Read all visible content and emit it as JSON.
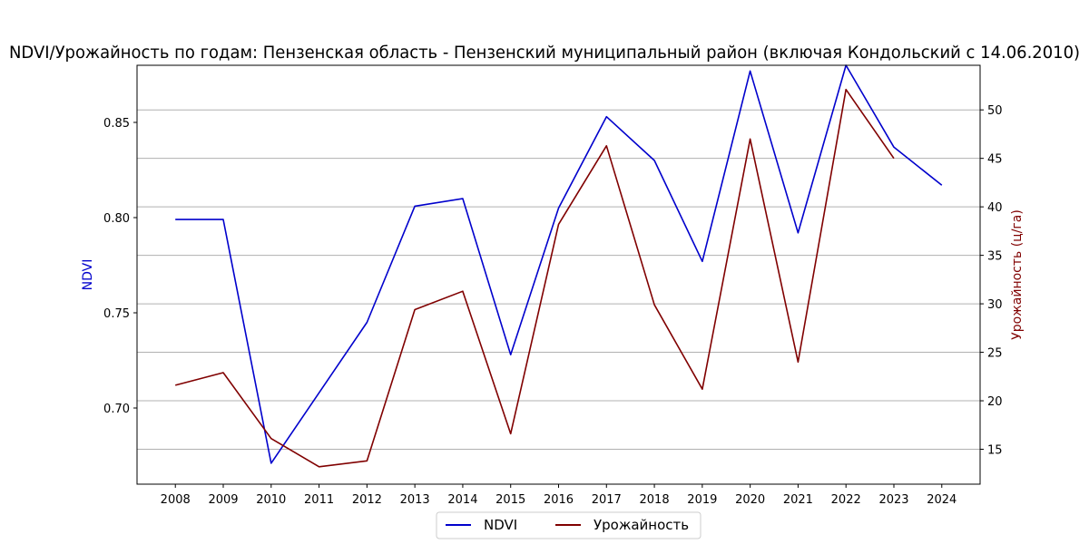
{
  "chart_data": {
    "type": "line",
    "title": "NDVI/Урожайность по годам: Пензенская область - Пензенский муниципальный район (включая Кондольский с 14.06.2010)",
    "x": [
      2008,
      2009,
      2010,
      2011,
      2012,
      2013,
      2014,
      2015,
      2016,
      2017,
      2018,
      2019,
      2020,
      2021,
      2022,
      2023,
      2024
    ],
    "x_tick_labels": [
      "2008",
      "2009",
      "2010",
      "2011",
      "2012",
      "2013",
      "2014",
      "2015",
      "2016",
      "2017",
      "2018",
      "2019",
      "2020",
      "2021",
      "2022",
      "2023",
      "2024"
    ],
    "left_axis": {
      "label": "NDVI",
      "color": "#0000cc",
      "ylim": [
        0.66,
        0.88
      ],
      "ticks": [
        0.7,
        0.75,
        0.8,
        0.85
      ],
      "tick_labels": [
        "0.70",
        "0.75",
        "0.80",
        "0.85"
      ]
    },
    "right_axis": {
      "label": "Урожайность (ц/га)",
      "color": "#800000",
      "ylim": [
        11.4,
        54.6
      ],
      "ticks": [
        15,
        20,
        25,
        30,
        35,
        40,
        45,
        50
      ],
      "tick_labels": [
        "15",
        "20",
        "25",
        "30",
        "35",
        "40",
        "45",
        "50"
      ]
    },
    "grid": true,
    "grid_axis": "right-y",
    "legend_placement": "bottom-center",
    "series": [
      {
        "name": "NDVI",
        "axis": "left",
        "color": "#0000cc",
        "values": [
          0.799,
          0.799,
          0.671,
          0.708,
          0.745,
          0.806,
          0.81,
          0.728,
          0.805,
          0.853,
          0.83,
          0.777,
          0.877,
          0.792,
          0.88,
          0.837,
          0.817
        ]
      },
      {
        "name": "Урожайность",
        "axis": "right",
        "color": "#800000",
        "values": [
          21.6,
          22.9,
          16.1,
          13.2,
          13.8,
          29.4,
          31.3,
          16.6,
          38.2,
          46.3,
          29.9,
          21.2,
          47.0,
          24.0,
          52.1,
          45.0,
          null
        ]
      }
    ]
  }
}
